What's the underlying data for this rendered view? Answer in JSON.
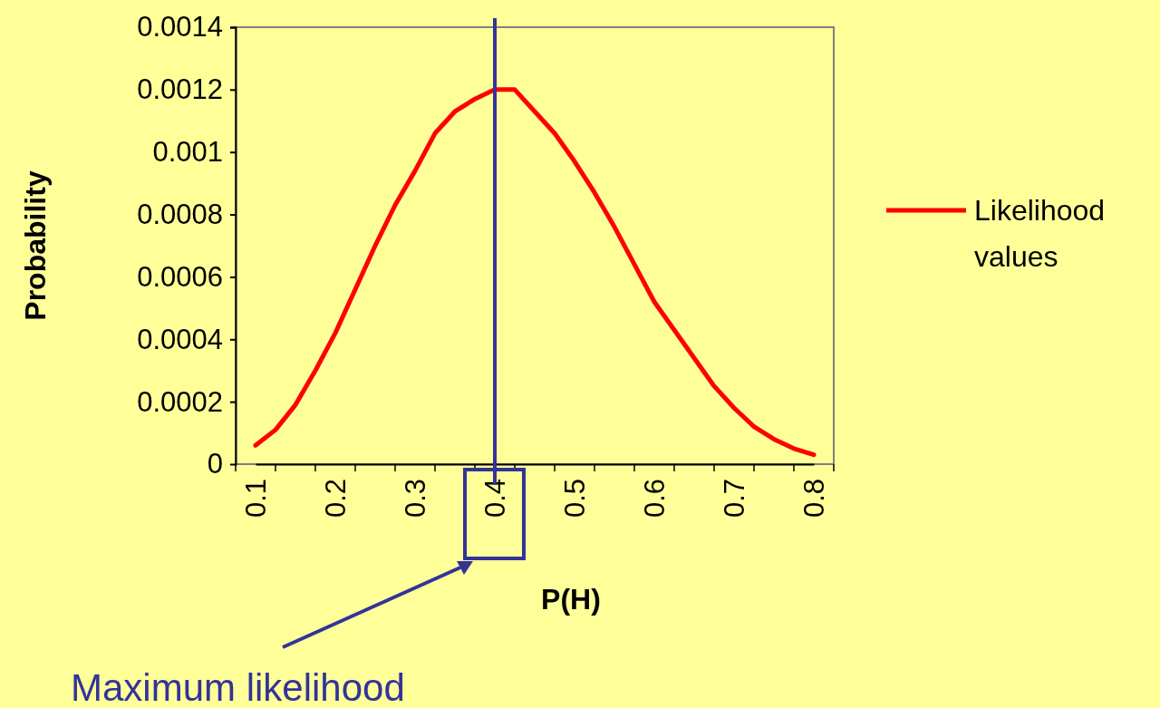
{
  "chart_data": {
    "type": "line",
    "xlabel": "P(H)",
    "ylabel": "Probability",
    "categories": [
      "0.1",
      null,
      null,
      null,
      "0.2",
      null,
      null,
      null,
      "0.3",
      null,
      null,
      null,
      "0.4",
      null,
      null,
      null,
      "0.5",
      null,
      null,
      null,
      "0.6",
      null,
      null,
      null,
      "0.7",
      null,
      null,
      null,
      "0.8"
    ],
    "series": [
      {
        "name": "Likelihood values",
        "color": "#ff0000",
        "values": [
          6e-05,
          0.00011,
          0.00019,
          0.0003,
          0.00042,
          0.00056,
          0.0007,
          0.00083,
          0.00094,
          0.00106,
          0.00113,
          0.00117,
          0.0012,
          0.0012,
          0.00113,
          0.00106,
          0.00097,
          0.00087,
          0.00076,
          0.00064,
          0.00052,
          0.00043,
          0.00034,
          0.00025,
          0.00018,
          0.00012,
          8e-05,
          5e-05,
          3e-05
        ]
      }
    ],
    "ylim": [
      0,
      0.0014
    ],
    "yticks": [
      0,
      0.0002,
      0.0004,
      0.0006,
      0.0008,
      0.001,
      0.0012,
      0.0014
    ],
    "ref_lines": [
      {
        "axis": "x",
        "value": "0.4",
        "color": "#333399"
      }
    ],
    "annotations": [
      "Maximum likelihood"
    ],
    "legend": "right",
    "grid": false,
    "marker": "none",
    "line_style": "solid"
  }
}
